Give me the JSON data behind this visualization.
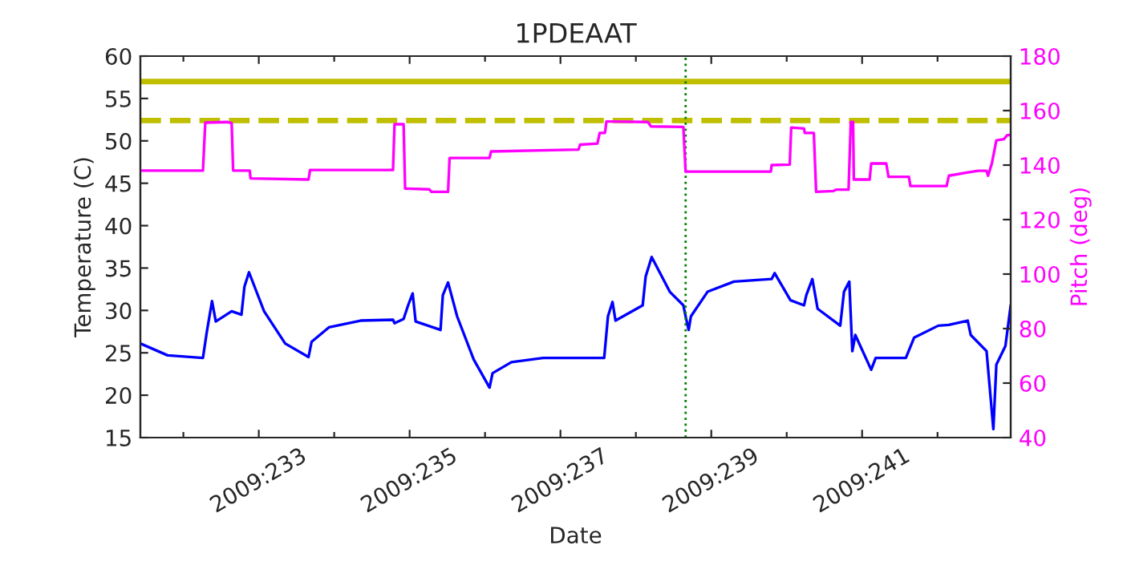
{
  "chart_data": {
    "type": "line",
    "title": "1PDEAAT",
    "xlabel": "Date",
    "ylabel": "Temperature (C)",
    "y2label": "Pitch (deg)",
    "xlim": [
      "2009-08-19T10:19",
      "2009-08-30T23:17"
    ],
    "xticks": [
      {
        "value": "2009-08-20",
        "label": null
      },
      {
        "value": "2009-08-21",
        "label": "2009:233"
      },
      {
        "value": "2009-08-22",
        "label": null
      },
      {
        "value": "2009-08-23",
        "label": "2009:235"
      },
      {
        "value": "2009-08-24",
        "label": null
      },
      {
        "value": "2009-08-25",
        "label": "2009:237"
      },
      {
        "value": "2009-08-26",
        "label": null
      },
      {
        "value": "2009-08-27",
        "label": "2009:239"
      },
      {
        "value": "2009-08-28",
        "label": null
      },
      {
        "value": "2009-08-29",
        "label": "2009:241"
      },
      {
        "value": "2009-08-30",
        "label": null
      }
    ],
    "ylim": [
      15,
      60
    ],
    "yticks": [
      15,
      20,
      25,
      30,
      35,
      40,
      45,
      50,
      55,
      60
    ],
    "y2lim": [
      40,
      180
    ],
    "y2ticks": [
      40,
      60,
      80,
      100,
      120,
      140,
      160,
      180
    ],
    "grid": false,
    "legend": false,
    "marker": "none",
    "line_style": "solid",
    "ref_lines": [
      {
        "axis": "y",
        "value": 57,
        "color": "#bfbf00",
        "line_style": "solid"
      },
      {
        "axis": "y",
        "value": 52.4,
        "color": "#bfbf00",
        "line_style": "dashed"
      },
      {
        "axis": "x",
        "value": "2009-08-26T15:50",
        "color": "#008000",
        "line_style": "dotted"
      }
    ],
    "series": [
      {
        "color": "#0000ff",
        "axis": "y",
        "x": [
          "2009-08-19T10:19",
          "2009-08-19T18:58",
          "2009-08-20T06:14",
          "2009-08-20T07:26",
          "2009-08-20T09:07",
          "2009-08-20T10:19",
          "2009-08-20T15:22",
          "2009-08-20T18:29",
          "2009-08-20T19:26",
          "2009-08-20T20:53",
          "2009-08-21T01:41",
          "2009-08-21T08:24",
          "2009-08-21T15:50",
          "2009-08-21T16:48",
          "2009-08-21T22:19",
          "2009-08-22T08:24",
          "2009-08-22T18:43",
          "2009-08-22T19:12",
          "2009-08-22T22:05",
          "2009-08-22T23:31",
          "2009-08-23T00:58",
          "2009-08-23T01:55",
          "2009-08-23T09:50",
          "2009-08-23T10:34",
          "2009-08-23T12:14",
          "2009-08-23T15:07",
          "2009-08-23T20:24",
          "2009-08-24T01:26",
          "2009-08-24T02:24",
          "2009-08-24T08:24",
          "2009-08-24T18:29",
          "2009-08-25T08:10",
          "2009-08-25T13:55",
          "2009-08-25T15:07",
          "2009-08-25T16:34",
          "2009-08-25T17:31",
          "2009-08-26T02:10",
          "2009-08-26T03:07",
          "2009-08-26T05:02",
          "2009-08-26T10:48",
          "2009-08-26T15:07",
          "2009-08-26T15:50",
          "2009-08-26T16:48",
          "2009-08-26T17:31",
          "2009-08-26T22:48",
          "2009-08-27T07:12",
          "2009-08-27T19:12",
          "2009-08-27T20:10",
          "2009-08-28T01:12",
          "2009-08-28T05:31",
          "2009-08-28T06:14",
          "2009-08-28T08:10",
          "2009-08-28T09:50",
          "2009-08-28T17:02",
          "2009-08-28T18:14",
          "2009-08-28T19:55",
          "2009-08-28T20:53",
          "2009-08-28T21:50",
          "2009-08-29T02:53",
          "2009-08-29T04:19",
          "2009-08-29T13:55",
          "2009-08-29T16:34",
          "2009-08-30T00:14",
          "2009-08-30T03:36",
          "2009-08-30T09:36",
          "2009-08-30T10:34",
          "2009-08-30T15:36",
          "2009-08-30T16:34",
          "2009-08-30T17:46",
          "2009-08-30T18:43",
          "2009-08-30T21:36",
          "2009-08-30T23:17"
        ],
        "values": [
          26.1,
          24.7,
          24.4,
          27.4,
          31.1,
          28.7,
          29.9,
          29.5,
          32.8,
          34.5,
          29.9,
          26.1,
          24.5,
          26.3,
          28.0,
          28.8,
          28.9,
          28.5,
          29.0,
          30.6,
          32.0,
          28.7,
          27.7,
          31.8,
          33.3,
          29.3,
          24.2,
          20.9,
          22.6,
          23.9,
          24.4,
          24.4,
          24.4,
          29.3,
          31.0,
          28.8,
          30.6,
          34.0,
          36.3,
          32.2,
          30.6,
          29.3,
          27.7,
          29.3,
          32.2,
          33.4,
          33.7,
          34.4,
          31.2,
          30.6,
          31.8,
          33.7,
          30.2,
          28.2,
          32.2,
          33.4,
          25.2,
          27.1,
          23.0,
          24.4,
          24.4,
          26.8,
          28.2,
          28.3,
          28.8,
          27.1,
          25.2,
          21.1,
          16.0,
          23.6,
          25.8,
          30.6
        ]
      },
      {
        "color": "#ff00ff",
        "axis": "y2",
        "x": [
          "2009-08-19T10:19",
          "2009-08-20T06:14",
          "2009-08-20T06:58",
          "2009-08-20T14:10",
          "2009-08-20T15:22",
          "2009-08-20T15:50",
          "2009-08-20T21:07",
          "2009-08-20T21:22",
          "2009-08-21T15:50",
          "2009-08-21T16:19",
          "2009-08-22T18:43",
          "2009-08-22T19:12",
          "2009-08-22T22:05",
          "2009-08-22T22:34",
          "2009-08-23T06:14",
          "2009-08-23T06:58",
          "2009-08-23T12:14",
          "2009-08-23T12:43",
          "2009-08-24T01:26",
          "2009-08-24T01:55",
          "2009-08-25T05:46",
          "2009-08-25T06:14",
          "2009-08-25T11:46",
          "2009-08-25T12:29",
          "2009-08-25T14:10",
          "2009-08-25T14:38",
          "2009-08-26T03:50",
          "2009-08-26T04:48",
          "2009-08-26T15:07",
          "2009-08-26T15:50",
          "2009-08-27T18:58",
          "2009-08-27T19:12",
          "2009-08-28T00:58",
          "2009-08-28T01:26",
          "2009-08-28T05:31",
          "2009-08-28T05:46",
          "2009-08-28T08:38",
          "2009-08-28T09:22",
          "2009-08-28T14:53",
          "2009-08-28T15:50",
          "2009-08-28T19:41",
          "2009-08-28T20:24",
          "2009-08-28T21:07",
          "2009-08-28T21:22",
          "2009-08-29T02:24",
          "2009-08-29T02:53",
          "2009-08-29T07:41",
          "2009-08-29T08:24",
          "2009-08-29T14:53",
          "2009-08-29T15:22",
          "2009-08-30T02:53",
          "2009-08-30T03:36",
          "2009-08-30T09:36",
          "2009-08-30T12:58",
          "2009-08-30T15:36",
          "2009-08-30T16:05",
          "2009-08-30T17:17",
          "2009-08-30T18:43",
          "2009-08-30T21:07",
          "2009-08-30T22:05",
          "2009-08-30T23:17"
        ],
        "values": [
          138.0,
          138.0,
          155.6,
          155.8,
          155.4,
          138.0,
          138.0,
          135.1,
          134.7,
          138.2,
          138.2,
          155.0,
          155.0,
          131.4,
          131.1,
          130.2,
          130.2,
          142.6,
          142.6,
          145.0,
          145.7,
          147.5,
          147.9,
          151.8,
          151.8,
          156.0,
          155.8,
          154.2,
          154.0,
          137.6,
          137.6,
          140.0,
          140.2,
          153.8,
          153.4,
          151.8,
          151.8,
          130.2,
          130.5,
          131.0,
          131.0,
          155.8,
          155.8,
          134.7,
          134.7,
          140.6,
          140.6,
          135.7,
          135.7,
          132.3,
          132.3,
          136.1,
          137.3,
          137.9,
          137.9,
          136.1,
          140.6,
          149.1,
          149.5,
          150.9,
          151.1
        ]
      }
    ]
  }
}
